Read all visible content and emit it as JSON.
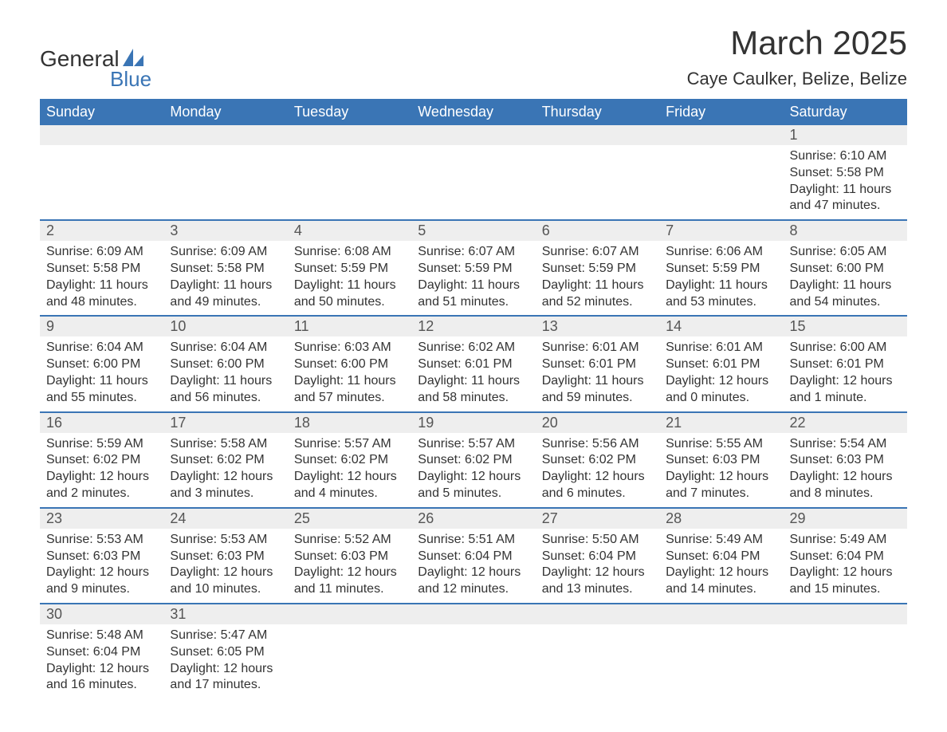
{
  "logo": {
    "text_top": "General",
    "text_bottom": "Blue",
    "accent_color": "#3a75b5"
  },
  "title": "March 2025",
  "subtitle": "Caye Caulker, Belize, Belize",
  "colors": {
    "header_bg": "#3a75b5",
    "header_fg": "#ffffff",
    "daynum_bg": "#eeeeee",
    "row_divider": "#3a75b5",
    "text": "#333333",
    "page_bg": "#ffffff"
  },
  "typography": {
    "title_fontsize": 42,
    "subtitle_fontsize": 22,
    "header_fontsize": 18,
    "daynum_fontsize": 18,
    "detail_fontsize": 16
  },
  "weekdays": [
    "Sunday",
    "Monday",
    "Tuesday",
    "Wednesday",
    "Thursday",
    "Friday",
    "Saturday"
  ],
  "weeks": [
    {
      "nums": [
        "",
        "",
        "",
        "",
        "",
        "",
        "1"
      ],
      "details": [
        "",
        "",
        "",
        "",
        "",
        "",
        "Sunrise: 6:10 AM\nSunset: 5:58 PM\nDaylight: 11 hours and 47 minutes."
      ]
    },
    {
      "nums": [
        "2",
        "3",
        "4",
        "5",
        "6",
        "7",
        "8"
      ],
      "details": [
        "Sunrise: 6:09 AM\nSunset: 5:58 PM\nDaylight: 11 hours and 48 minutes.",
        "Sunrise: 6:09 AM\nSunset: 5:58 PM\nDaylight: 11 hours and 49 minutes.",
        "Sunrise: 6:08 AM\nSunset: 5:59 PM\nDaylight: 11 hours and 50 minutes.",
        "Sunrise: 6:07 AM\nSunset: 5:59 PM\nDaylight: 11 hours and 51 minutes.",
        "Sunrise: 6:07 AM\nSunset: 5:59 PM\nDaylight: 11 hours and 52 minutes.",
        "Sunrise: 6:06 AM\nSunset: 5:59 PM\nDaylight: 11 hours and 53 minutes.",
        "Sunrise: 6:05 AM\nSunset: 6:00 PM\nDaylight: 11 hours and 54 minutes."
      ]
    },
    {
      "nums": [
        "9",
        "10",
        "11",
        "12",
        "13",
        "14",
        "15"
      ],
      "details": [
        "Sunrise: 6:04 AM\nSunset: 6:00 PM\nDaylight: 11 hours and 55 minutes.",
        "Sunrise: 6:04 AM\nSunset: 6:00 PM\nDaylight: 11 hours and 56 minutes.",
        "Sunrise: 6:03 AM\nSunset: 6:00 PM\nDaylight: 11 hours and 57 minutes.",
        "Sunrise: 6:02 AM\nSunset: 6:01 PM\nDaylight: 11 hours and 58 minutes.",
        "Sunrise: 6:01 AM\nSunset: 6:01 PM\nDaylight: 11 hours and 59 minutes.",
        "Sunrise: 6:01 AM\nSunset: 6:01 PM\nDaylight: 12 hours and 0 minutes.",
        "Sunrise: 6:00 AM\nSunset: 6:01 PM\nDaylight: 12 hours and 1 minute."
      ]
    },
    {
      "nums": [
        "16",
        "17",
        "18",
        "19",
        "20",
        "21",
        "22"
      ],
      "details": [
        "Sunrise: 5:59 AM\nSunset: 6:02 PM\nDaylight: 12 hours and 2 minutes.",
        "Sunrise: 5:58 AM\nSunset: 6:02 PM\nDaylight: 12 hours and 3 minutes.",
        "Sunrise: 5:57 AM\nSunset: 6:02 PM\nDaylight: 12 hours and 4 minutes.",
        "Sunrise: 5:57 AM\nSunset: 6:02 PM\nDaylight: 12 hours and 5 minutes.",
        "Sunrise: 5:56 AM\nSunset: 6:02 PM\nDaylight: 12 hours and 6 minutes.",
        "Sunrise: 5:55 AM\nSunset: 6:03 PM\nDaylight: 12 hours and 7 minutes.",
        "Sunrise: 5:54 AM\nSunset: 6:03 PM\nDaylight: 12 hours and 8 minutes."
      ]
    },
    {
      "nums": [
        "23",
        "24",
        "25",
        "26",
        "27",
        "28",
        "29"
      ],
      "details": [
        "Sunrise: 5:53 AM\nSunset: 6:03 PM\nDaylight: 12 hours and 9 minutes.",
        "Sunrise: 5:53 AM\nSunset: 6:03 PM\nDaylight: 12 hours and 10 minutes.",
        "Sunrise: 5:52 AM\nSunset: 6:03 PM\nDaylight: 12 hours and 11 minutes.",
        "Sunrise: 5:51 AM\nSunset: 6:04 PM\nDaylight: 12 hours and 12 minutes.",
        "Sunrise: 5:50 AM\nSunset: 6:04 PM\nDaylight: 12 hours and 13 minutes.",
        "Sunrise: 5:49 AM\nSunset: 6:04 PM\nDaylight: 12 hours and 14 minutes.",
        "Sunrise: 5:49 AM\nSunset: 6:04 PM\nDaylight: 12 hours and 15 minutes."
      ]
    },
    {
      "nums": [
        "30",
        "31",
        "",
        "",
        "",
        "",
        ""
      ],
      "details": [
        "Sunrise: 5:48 AM\nSunset: 6:04 PM\nDaylight: 12 hours and 16 minutes.",
        "Sunrise: 5:47 AM\nSunset: 6:05 PM\nDaylight: 12 hours and 17 minutes.",
        "",
        "",
        "",
        "",
        ""
      ]
    }
  ]
}
